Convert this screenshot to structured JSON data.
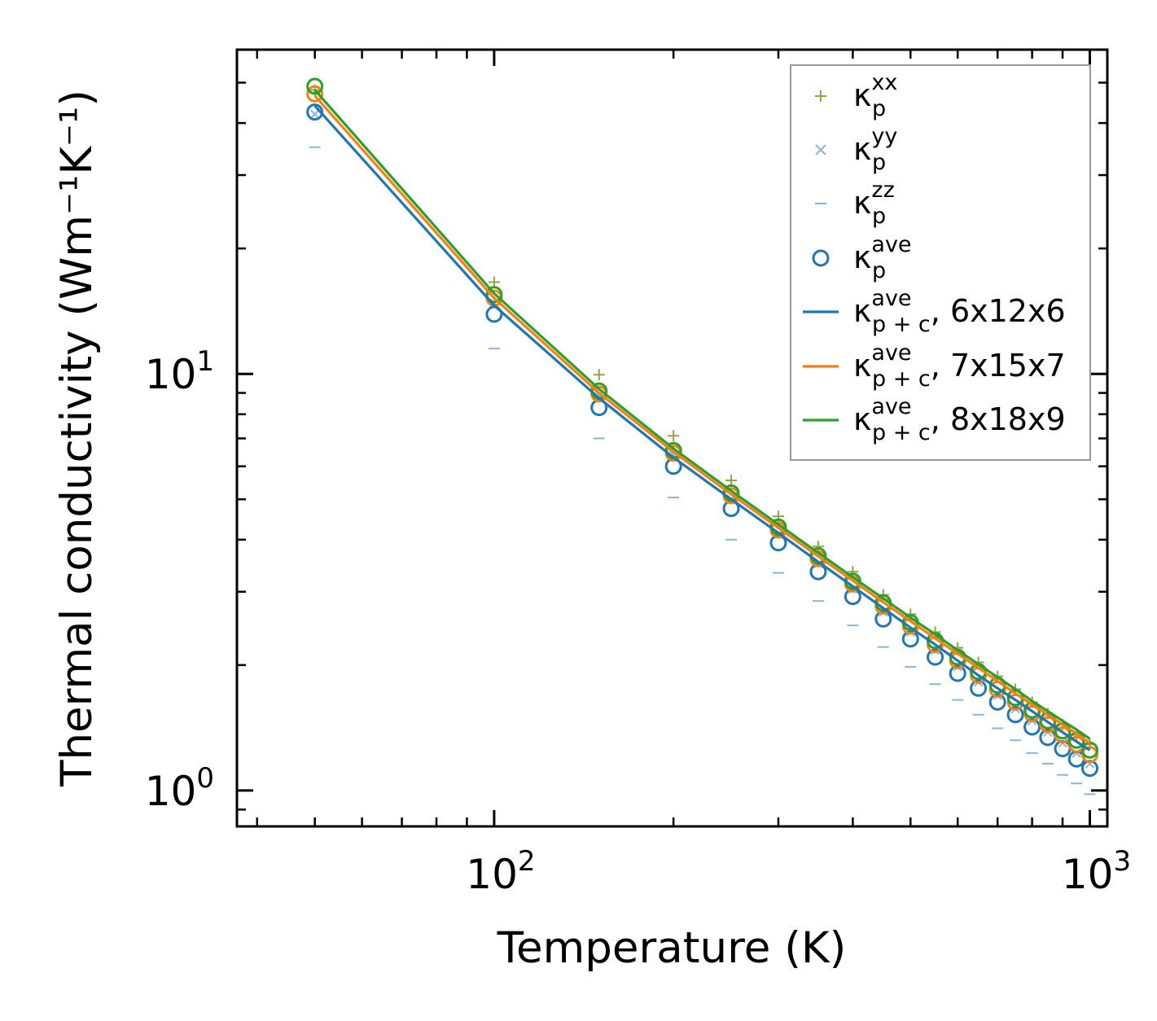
{
  "chart_data": {
    "type": "scatter",
    "title": "",
    "xlabel": "Temperature (K)",
    "ylabel": "Thermal conductivity (Wm⁻¹K⁻¹)",
    "xscale": "log",
    "yscale": "log",
    "xlim": [
      37,
      1070
    ],
    "ylim": [
      0.82,
      60
    ],
    "x_ticks": [
      {
        "base": "10",
        "exp": "2",
        "value": 100
      },
      {
        "base": "10",
        "exp": "3",
        "value": 1000
      }
    ],
    "y_ticks": [
      {
        "base": "10",
        "exp": "0",
        "value": 1
      },
      {
        "base": "10",
        "exp": "1",
        "value": 10
      }
    ],
    "legend_position": "top-right",
    "colors": {
      "blue": "#1f77b4",
      "orange": "#ff7f0e",
      "green": "#2ca02c",
      "olive": "#9aa04a",
      "lightblue": "#8fb4d6",
      "lightorange": "#ffb27a"
    },
    "x": [
      50,
      100,
      150,
      200,
      250,
      300,
      350,
      400,
      450,
      500,
      550,
      600,
      650,
      700,
      750,
      800,
      850,
      900,
      950,
      1000
    ],
    "series": [
      {
        "name": "xx",
        "sup": "xx",
        "sub": "p",
        "label_suffix": "",
        "marker": "+",
        "color": "#9aa04a",
        "values": [
          48.0,
          16.6,
          9.95,
          7.1,
          5.55,
          4.55,
          3.85,
          3.35,
          2.95,
          2.65,
          2.4,
          2.2,
          2.03,
          1.88,
          1.75,
          1.63,
          1.53,
          1.44,
          1.36,
          1.29
        ]
      },
      {
        "name": "yy",
        "sup": "yy",
        "sub": "p",
        "label_suffix": "",
        "marker": "x",
        "color": "#8fb4d6",
        "values": [
          42.0,
          14.8,
          8.9,
          6.4,
          5.0,
          4.12,
          3.5,
          3.04,
          2.68,
          2.4,
          2.17,
          1.98,
          1.82,
          1.69,
          1.57,
          1.47,
          1.38,
          1.3,
          1.23,
          1.16
        ]
      },
      {
        "name": "zz",
        "sup": "zz",
        "sub": "p",
        "label_suffix": "",
        "marker": "_",
        "color": "#8fb4d6",
        "values": [
          35.0,
          11.5,
          7.0,
          5.05,
          4.0,
          3.33,
          2.85,
          2.49,
          2.21,
          1.98,
          1.8,
          1.65,
          1.52,
          1.41,
          1.32,
          1.23,
          1.16,
          1.09,
          1.04,
          0.98
        ]
      },
      {
        "name": "ave",
        "sup": "ave",
        "sub": "p",
        "label_suffix": "",
        "marker": "o",
        "color": "#1f77b4",
        "values": [
          42.5,
          13.9,
          8.3,
          6.0,
          4.75,
          3.93,
          3.35,
          2.92,
          2.58,
          2.31,
          2.09,
          1.91,
          1.76,
          1.63,
          1.52,
          1.42,
          1.34,
          1.26,
          1.19,
          1.13
        ]
      },
      {
        "name": "ave_5",
        "sup": "ave",
        "sub": "p",
        "label_suffix": "",
        "marker": "o",
        "color": "#ff7f0e",
        "values": [
          47.0,
          15.2,
          8.95,
          6.45,
          5.1,
          4.22,
          3.6,
          3.13,
          2.77,
          2.48,
          2.24,
          2.05,
          1.89,
          1.75,
          1.63,
          1.53,
          1.44,
          1.36,
          1.29,
          1.22
        ]
      },
      {
        "name": "ave_6",
        "sup": "ave",
        "sub": "p",
        "label_suffix": "",
        "marker": "o",
        "color": "#2ca02c",
        "values": [
          49.0,
          15.5,
          9.1,
          6.55,
          5.18,
          4.29,
          3.66,
          3.18,
          2.82,
          2.53,
          2.29,
          2.09,
          1.93,
          1.79,
          1.67,
          1.56,
          1.47,
          1.39,
          1.32,
          1.25
        ]
      },
      {
        "name": "p+c 6x12x6",
        "sup": "ave",
        "sub": "p + c",
        "label_suffix": ", 6x12x6",
        "marker": "line",
        "color": "#1f77b4",
        "values": [
          44.0,
          14.6,
          8.75,
          6.3,
          5.0,
          4.15,
          3.54,
          3.09,
          2.74,
          2.46,
          2.24,
          2.05,
          1.89,
          1.76,
          1.65,
          1.55,
          1.46,
          1.38,
          1.31,
          1.25
        ]
      },
      {
        "name": "p+c 7x15x7",
        "sup": "ave",
        "sub": "p + c",
        "label_suffix": ", 7x15x7",
        "marker": "line",
        "color": "#ff7f0e",
        "values": [
          46.5,
          15.2,
          9.0,
          6.5,
          5.14,
          4.27,
          3.65,
          3.19,
          2.83,
          2.55,
          2.32,
          2.13,
          1.97,
          1.83,
          1.71,
          1.61,
          1.52,
          1.44,
          1.37,
          1.3
        ]
      },
      {
        "name": "p+c 8x18x9",
        "sup": "ave",
        "sub": "p + c",
        "label_suffix": ", 8x18x9",
        "marker": "line",
        "color": "#2ca02c",
        "values": [
          48.0,
          15.6,
          9.2,
          6.62,
          5.24,
          4.35,
          3.72,
          3.25,
          2.89,
          2.6,
          2.37,
          2.17,
          2.01,
          1.87,
          1.75,
          1.64,
          1.55,
          1.47,
          1.4,
          1.33
        ]
      }
    ],
    "legend_entries": [
      "xx",
      "yy",
      "zz",
      "ave",
      "p+c 6x12x6",
      "p+c 7x15x7",
      "p+c 8x18x9"
    ]
  }
}
